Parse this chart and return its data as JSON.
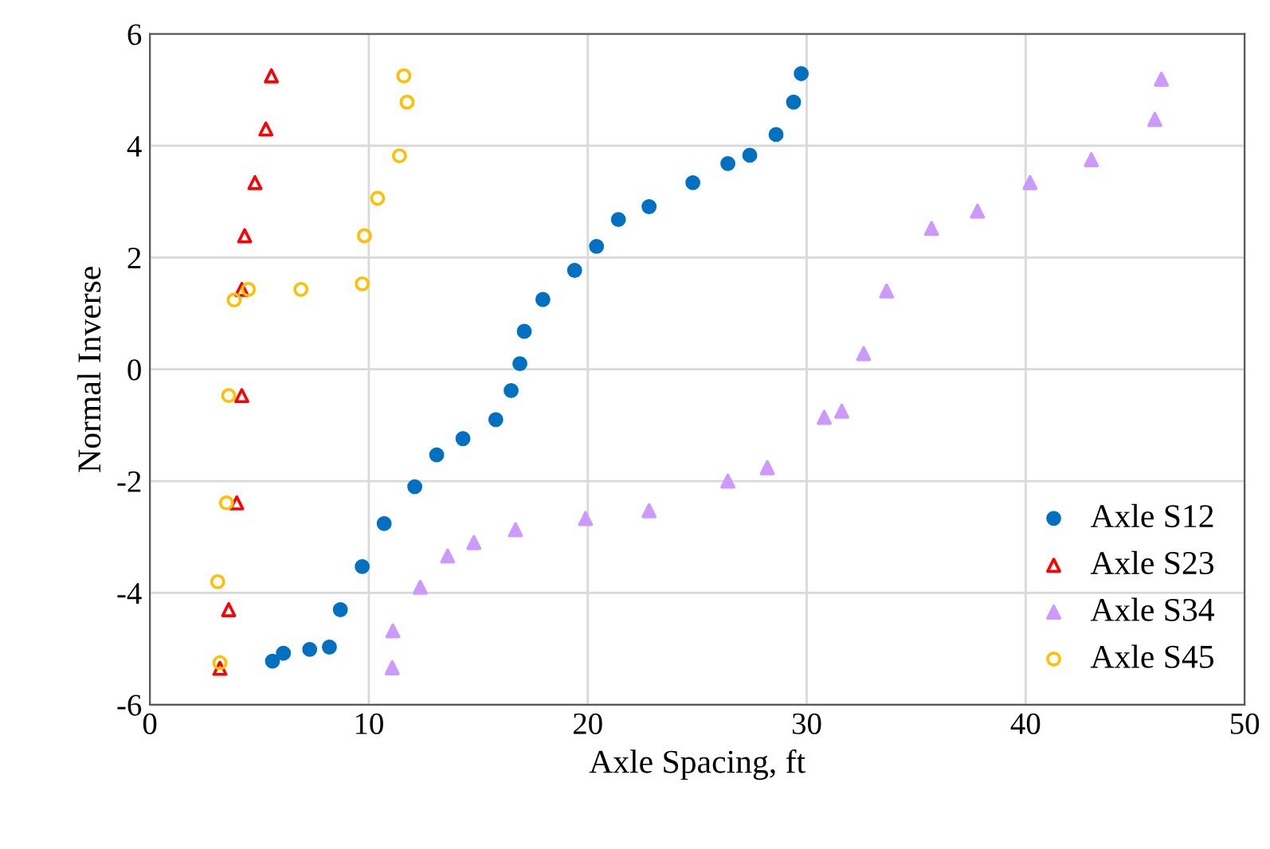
{
  "chart_data": {
    "type": "scatter",
    "xlabel": "Axle Spacing, ft",
    "ylabel": "Normal Inverse",
    "xlim": [
      0,
      50
    ],
    "xticks": [
      0,
      10,
      20,
      30,
      40,
      50
    ],
    "ylim": [
      -6,
      6
    ],
    "yticks": [
      -6,
      -4,
      -2,
      0,
      2,
      4,
      6
    ],
    "grid": true,
    "legend": "bottom right",
    "series": [
      {
        "name": "Axle S12",
        "color": "#0070c0",
        "marker": "circle",
        "x": [
          5.6,
          6.1,
          7.3,
          8.2,
          8.7,
          9.7,
          10.7,
          12.1,
          13.1,
          14.3,
          15.8,
          16.5,
          16.9,
          17.1,
          17.95,
          19.4,
          20.4,
          21.4,
          22.8,
          24.8,
          26.4,
          27.4,
          28.6,
          29.4,
          29.75
        ],
        "values": [
          -5.22,
          -5.08,
          -5.01,
          -4.97,
          -4.3,
          -3.53,
          -2.76,
          -2.1,
          -1.53,
          -1.24,
          -0.9,
          -0.38,
          0.1,
          0.68,
          1.25,
          1.77,
          2.2,
          2.68,
          2.91,
          3.34,
          3.68,
          3.83,
          4.2,
          4.78,
          5.29
        ]
      },
      {
        "name": "Axle S23",
        "color": "#ff0000",
        "marker": "triangle",
        "x": [
          3.2,
          3.6,
          3.97,
          4.2,
          4.2,
          4.33,
          4.8,
          5.3,
          5.55
        ],
        "values": [
          -5.35,
          -4.3,
          -2.39,
          -0.47,
          1.43,
          2.39,
          3.34,
          4.3,
          5.25
        ]
      },
      {
        "name": "Axle S34",
        "color": "#cc99ff",
        "marker": "triangle",
        "x": [
          11.07,
          11.1,
          12.35,
          13.6,
          14.8,
          16.7,
          19.9,
          22.8,
          26.4,
          28.2,
          30.8,
          31.6,
          32.6,
          33.65,
          35.7,
          37.8,
          40.2,
          43.0,
          45.9,
          46.2
        ],
        "values": [
          -5.34,
          -4.68,
          -3.9,
          -3.34,
          -3.1,
          -2.87,
          -2.67,
          -2.53,
          -2.0,
          -1.76,
          -0.86,
          -0.75,
          0.28,
          1.4,
          2.52,
          2.83,
          3.34,
          3.75,
          4.47,
          5.19
        ]
      },
      {
        "name": "Axle S45",
        "color": "#ffc000",
        "marker": "circle",
        "x": [
          3.2,
          3.1,
          3.5,
          3.6,
          3.85,
          4.5,
          6.9,
          9.7,
          9.8,
          10.4,
          11.4,
          11.75,
          11.6
        ],
        "values": [
          -5.25,
          -3.8,
          -2.39,
          -0.47,
          1.24,
          1.43,
          1.43,
          1.53,
          2.39,
          3.06,
          3.82,
          4.78,
          5.25
        ]
      }
    ]
  }
}
